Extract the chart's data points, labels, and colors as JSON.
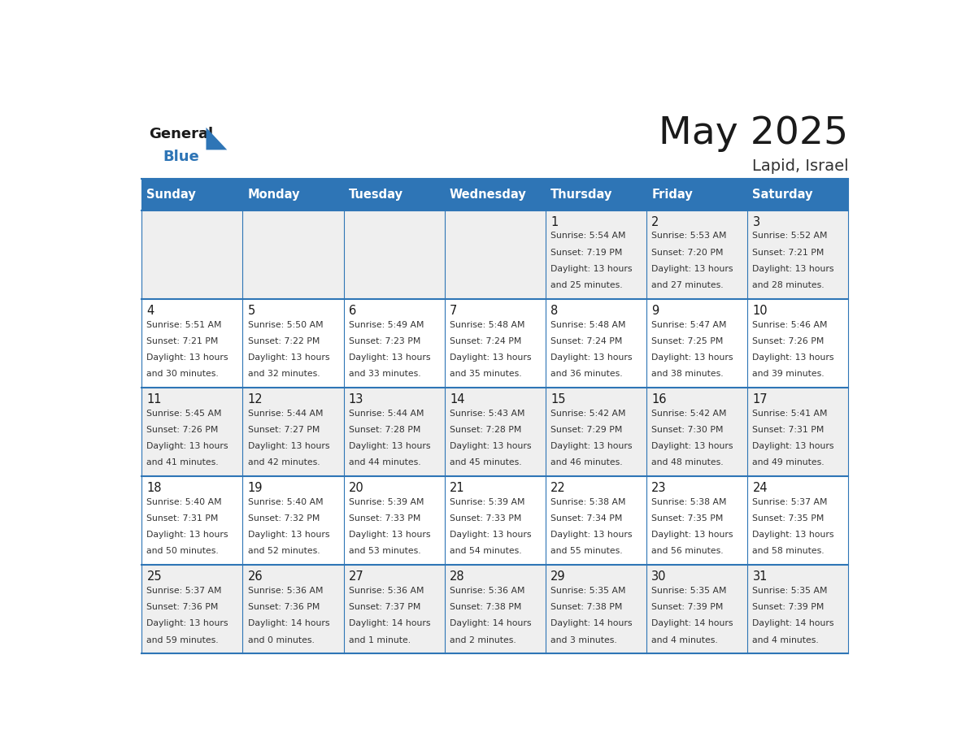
{
  "title": "May 2025",
  "subtitle": "Lapid, Israel",
  "header_color": "#2E75B6",
  "header_text_color": "#FFFFFF",
  "cell_bg_light": "#EFEFEF",
  "cell_bg_white": "#FFFFFF",
  "day_names": [
    "Sunday",
    "Monday",
    "Tuesday",
    "Wednesday",
    "Thursday",
    "Friday",
    "Saturday"
  ],
  "title_color": "#1a1a1a",
  "subtitle_color": "#333333",
  "line_color": "#2E75B6",
  "day_number_color": "#1a1a1a",
  "cell_text_color": "#333333",
  "logo_general_color": "#1a1a1a",
  "logo_blue_color": "#2E75B6",
  "logo_triangle_color": "#2E75B6",
  "weeks": [
    [
      {
        "day": null,
        "sunrise": null,
        "sunset": null,
        "daylight": null
      },
      {
        "day": null,
        "sunrise": null,
        "sunset": null,
        "daylight": null
      },
      {
        "day": null,
        "sunrise": null,
        "sunset": null,
        "daylight": null
      },
      {
        "day": null,
        "sunrise": null,
        "sunset": null,
        "daylight": null
      },
      {
        "day": 1,
        "sunrise": "5:54 AM",
        "sunset": "7:19 PM",
        "daylight": "13 hours and 25 minutes."
      },
      {
        "day": 2,
        "sunrise": "5:53 AM",
        "sunset": "7:20 PM",
        "daylight": "13 hours and 27 minutes."
      },
      {
        "day": 3,
        "sunrise": "5:52 AM",
        "sunset": "7:21 PM",
        "daylight": "13 hours and 28 minutes."
      }
    ],
    [
      {
        "day": 4,
        "sunrise": "5:51 AM",
        "sunset": "7:21 PM",
        "daylight": "13 hours and 30 minutes."
      },
      {
        "day": 5,
        "sunrise": "5:50 AM",
        "sunset": "7:22 PM",
        "daylight": "13 hours and 32 minutes."
      },
      {
        "day": 6,
        "sunrise": "5:49 AM",
        "sunset": "7:23 PM",
        "daylight": "13 hours and 33 minutes."
      },
      {
        "day": 7,
        "sunrise": "5:48 AM",
        "sunset": "7:24 PM",
        "daylight": "13 hours and 35 minutes."
      },
      {
        "day": 8,
        "sunrise": "5:48 AM",
        "sunset": "7:24 PM",
        "daylight": "13 hours and 36 minutes."
      },
      {
        "day": 9,
        "sunrise": "5:47 AM",
        "sunset": "7:25 PM",
        "daylight": "13 hours and 38 minutes."
      },
      {
        "day": 10,
        "sunrise": "5:46 AM",
        "sunset": "7:26 PM",
        "daylight": "13 hours and 39 minutes."
      }
    ],
    [
      {
        "day": 11,
        "sunrise": "5:45 AM",
        "sunset": "7:26 PM",
        "daylight": "13 hours and 41 minutes."
      },
      {
        "day": 12,
        "sunrise": "5:44 AM",
        "sunset": "7:27 PM",
        "daylight": "13 hours and 42 minutes."
      },
      {
        "day": 13,
        "sunrise": "5:44 AM",
        "sunset": "7:28 PM",
        "daylight": "13 hours and 44 minutes."
      },
      {
        "day": 14,
        "sunrise": "5:43 AM",
        "sunset": "7:28 PM",
        "daylight": "13 hours and 45 minutes."
      },
      {
        "day": 15,
        "sunrise": "5:42 AM",
        "sunset": "7:29 PM",
        "daylight": "13 hours and 46 minutes."
      },
      {
        "day": 16,
        "sunrise": "5:42 AM",
        "sunset": "7:30 PM",
        "daylight": "13 hours and 48 minutes."
      },
      {
        "day": 17,
        "sunrise": "5:41 AM",
        "sunset": "7:31 PM",
        "daylight": "13 hours and 49 minutes."
      }
    ],
    [
      {
        "day": 18,
        "sunrise": "5:40 AM",
        "sunset": "7:31 PM",
        "daylight": "13 hours and 50 minutes."
      },
      {
        "day": 19,
        "sunrise": "5:40 AM",
        "sunset": "7:32 PM",
        "daylight": "13 hours and 52 minutes."
      },
      {
        "day": 20,
        "sunrise": "5:39 AM",
        "sunset": "7:33 PM",
        "daylight": "13 hours and 53 minutes."
      },
      {
        "day": 21,
        "sunrise": "5:39 AM",
        "sunset": "7:33 PM",
        "daylight": "13 hours and 54 minutes."
      },
      {
        "day": 22,
        "sunrise": "5:38 AM",
        "sunset": "7:34 PM",
        "daylight": "13 hours and 55 minutes."
      },
      {
        "day": 23,
        "sunrise": "5:38 AM",
        "sunset": "7:35 PM",
        "daylight": "13 hours and 56 minutes."
      },
      {
        "day": 24,
        "sunrise": "5:37 AM",
        "sunset": "7:35 PM",
        "daylight": "13 hours and 58 minutes."
      }
    ],
    [
      {
        "day": 25,
        "sunrise": "5:37 AM",
        "sunset": "7:36 PM",
        "daylight": "13 hours and 59 minutes."
      },
      {
        "day": 26,
        "sunrise": "5:36 AM",
        "sunset": "7:36 PM",
        "daylight": "14 hours and 0 minutes."
      },
      {
        "day": 27,
        "sunrise": "5:36 AM",
        "sunset": "7:37 PM",
        "daylight": "14 hours and 1 minute."
      },
      {
        "day": 28,
        "sunrise": "5:36 AM",
        "sunset": "7:38 PM",
        "daylight": "14 hours and 2 minutes."
      },
      {
        "day": 29,
        "sunrise": "5:35 AM",
        "sunset": "7:38 PM",
        "daylight": "14 hours and 3 minutes."
      },
      {
        "day": 30,
        "sunrise": "5:35 AM",
        "sunset": "7:39 PM",
        "daylight": "14 hours and 4 minutes."
      },
      {
        "day": 31,
        "sunrise": "5:35 AM",
        "sunset": "7:39 PM",
        "daylight": "14 hours and 4 minutes."
      }
    ]
  ]
}
